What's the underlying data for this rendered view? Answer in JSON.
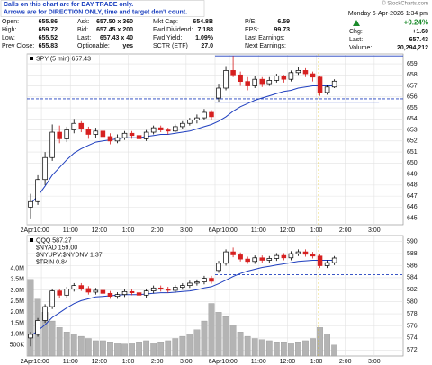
{
  "notice": [
    "Calls on this chart are for DAY TRADE only.",
    "Arrows are for DIRECTION ONLY, time and target don't count."
  ],
  "copyright": "© StockCharts.com",
  "quote": {
    "columns": [
      [
        [
          "Open:",
          "655.86"
        ],
        [
          "High:",
          "659.72"
        ],
        [
          "Low:",
          "655.52"
        ],
        [
          "Prev Close:",
          "655.83"
        ]
      ],
      [
        [
          "Ask:",
          "657.50 x 360"
        ],
        [
          "Bid:",
          "657.45 x 200"
        ],
        [
          "Last:",
          "657.43 x 40"
        ],
        [
          "Optionable:",
          "yes"
        ]
      ],
      [
        [
          "Mkt Cap:",
          "654.8B"
        ],
        [
          "Fwd Dividend:",
          "7.188"
        ],
        [
          "Fwd Yield:",
          "1.09%"
        ],
        [
          "SCTR (ETF)",
          "27.0"
        ]
      ],
      [
        [
          "P/E:",
          "6.59"
        ],
        [
          "EPS:",
          "99.73"
        ],
        [
          "Last Earnings:"
        ],
        [
          "Next Earnings:"
        ]
      ]
    ]
  },
  "summary": {
    "datetime": "Monday  6-Apr-2026  1:34 pm",
    "change_pct": "+0.24%",
    "rows": [
      [
        "Chg:",
        "+1.60"
      ],
      [
        "Last:",
        "657.43"
      ],
      [
        "Volume:",
        "20,294,212"
      ]
    ]
  },
  "chart_data": [
    {
      "type": "candlestick",
      "title": "SPY (5 min) 657.43",
      "x": [
        0,
        3,
        6,
        9,
        12,
        15,
        18,
        21,
        24,
        27,
        30,
        33,
        36,
        39,
        42,
        45,
        48,
        51,
        54,
        57,
        60,
        63,
        66,
        69,
        72,
        75,
        78,
        81,
        84,
        87,
        90,
        93,
        96,
        99,
        102,
        105,
        108,
        111,
        114,
        117,
        120,
        123,
        126
      ],
      "ohlc": [
        [
          646.0,
          647.2,
          644.9,
          646.5
        ],
        [
          646.5,
          648.9,
          646.2,
          648.5
        ],
        [
          648.5,
          651.0,
          648.0,
          650.5
        ],
        [
          650.5,
          653.5,
          650.2,
          652.8
        ],
        [
          652.8,
          653.4,
          651.8,
          652.2
        ],
        [
          652.2,
          653.3,
          651.9,
          653.0
        ],
        [
          653.0,
          654.0,
          652.7,
          653.6
        ],
        [
          653.6,
          653.8,
          652.8,
          653.1
        ],
        [
          653.1,
          653.3,
          652.2,
          652.6
        ],
        [
          652.6,
          653.2,
          652.3,
          652.9
        ],
        [
          652.9,
          653.1,
          652.0,
          652.4
        ],
        [
          652.4,
          652.7,
          651.7,
          652.0
        ],
        [
          652.0,
          652.6,
          651.8,
          652.3
        ],
        [
          652.3,
          652.9,
          652.1,
          652.7
        ],
        [
          652.7,
          652.9,
          652.2,
          652.5
        ],
        [
          652.5,
          652.7,
          651.9,
          652.2
        ],
        [
          652.2,
          653.0,
          652.0,
          652.8
        ],
        [
          652.8,
          653.4,
          652.6,
          653.2
        ],
        [
          653.2,
          653.4,
          652.8,
          653.0
        ],
        [
          653.0,
          653.2,
          652.6,
          652.9
        ],
        [
          652.9,
          653.5,
          652.8,
          653.3
        ],
        [
          653.3,
          653.8,
          653.1,
          653.6
        ],
        [
          653.6,
          654.1,
          653.4,
          653.9
        ],
        [
          653.9,
          654.4,
          653.6,
          654.1
        ],
        [
          654.1,
          654.9,
          653.9,
          654.6
        ],
        [
          654.6,
          654.8,
          653.9,
          654.2
        ],
        [
          655.9,
          657.2,
          655.5,
          656.8
        ],
        [
          656.8,
          658.8,
          656.6,
          658.4
        ],
        [
          658.4,
          659.72,
          657.8,
          658.0
        ],
        [
          658.0,
          658.3,
          657.0,
          657.4
        ],
        [
          657.4,
          657.8,
          656.6,
          657.0
        ],
        [
          657.0,
          657.9,
          656.8,
          657.6
        ],
        [
          657.6,
          657.8,
          656.9,
          657.2
        ],
        [
          657.2,
          657.8,
          657.0,
          657.5
        ],
        [
          657.5,
          658.1,
          657.3,
          657.9
        ],
        [
          657.9,
          658.0,
          657.3,
          657.6
        ],
        [
          657.6,
          658.4,
          657.4,
          658.2
        ],
        [
          658.2,
          658.7,
          658.0,
          658.4
        ],
        [
          658.4,
          658.6,
          657.8,
          658.1
        ],
        [
          658.1,
          658.3,
          657.4,
          657.8
        ],
        [
          657.8,
          657.9,
          656.1,
          656.4
        ],
        [
          656.4,
          657.1,
          656.2,
          656.9
        ],
        [
          656.9,
          657.6,
          656.8,
          657.43
        ]
      ],
      "ma": {
        "color": "#1f3fbf",
        "values": [
          646.3,
          647.0,
          647.9,
          648.9,
          649.6,
          650.3,
          650.9,
          651.3,
          651.6,
          651.9,
          652.0,
          652.1,
          652.2,
          652.3,
          652.3,
          652.3,
          652.4,
          652.5,
          652.6,
          652.6,
          652.7,
          652.8,
          652.9,
          653.1,
          653.3,
          653.5,
          653.8,
          654.2,
          654.7,
          655.1,
          655.4,
          655.7,
          655.9,
          656.1,
          656.3,
          656.5,
          656.6,
          656.8,
          656.9,
          657.0,
          657.0,
          657.0,
          657.0
        ]
      },
      "up_color": "#000000",
      "down_color": "#d62020",
      "xlim": [
        0,
        156
      ],
      "xticks": [
        {
          "value": 0,
          "label": "2Apr"
        },
        {
          "value": 6,
          "label": "10:00"
        },
        {
          "value": 18,
          "label": "11:00"
        },
        {
          "value": 30,
          "label": "12:00"
        },
        {
          "value": 42,
          "label": "1:00"
        },
        {
          "value": 54,
          "label": "2:00"
        },
        {
          "value": 66,
          "label": "3:00"
        },
        {
          "value": 78,
          "label": "6Apr"
        },
        {
          "value": 84,
          "label": "10:00"
        },
        {
          "value": 96,
          "label": "11:00"
        },
        {
          "value": 108,
          "label": "12:00"
        },
        {
          "value": 120,
          "label": "1:00"
        },
        {
          "value": 132,
          "label": "2:00"
        },
        {
          "value": 144,
          "label": "3:00"
        }
      ],
      "ylim": [
        644.4,
        659.9
      ],
      "yticks": [
        645,
        646,
        647,
        648,
        649,
        650,
        651,
        652,
        653,
        654,
        655,
        656,
        657,
        658,
        659
      ],
      "hlines": [
        {
          "value": 659.72,
          "from": 78,
          "to": 156,
          "dashed": false
        },
        {
          "value": 655.83,
          "from": 0,
          "to": 156,
          "dashed": true
        },
        {
          "value": 655.52,
          "from": 78,
          "to": 146,
          "dashed": false
        }
      ],
      "hline_color": "#1f3fbf",
      "marker_x": 121,
      "marker_color": "#e0c000",
      "grid": true
    },
    {
      "type": "candlestick",
      "title": "QQQ 587.27",
      "legend": [
        "$NYAD 159.00",
        "$NYUPV:$NYDNV 1.37",
        "$TRIN 0.84"
      ],
      "x": [
        0,
        3,
        6,
        9,
        12,
        15,
        18,
        21,
        24,
        27,
        30,
        33,
        36,
        39,
        42,
        45,
        48,
        51,
        54,
        57,
        60,
        63,
        66,
        69,
        72,
        75,
        78,
        81,
        84,
        87,
        90,
        93,
        96,
        99,
        102,
        105,
        108,
        111,
        114,
        117,
        120,
        123,
        126
      ],
      "ohlc": [
        [
          574.0,
          575.0,
          572.6,
          574.6
        ],
        [
          574.6,
          577.3,
          574.2,
          576.9
        ],
        [
          576.9,
          579.6,
          576.5,
          579.2
        ],
        [
          579.2,
          582.2,
          578.8,
          581.8
        ],
        [
          581.8,
          582.2,
          580.7,
          581.1
        ],
        [
          581.1,
          582.5,
          580.7,
          582.1
        ],
        [
          582.1,
          583.1,
          581.7,
          582.7
        ],
        [
          582.7,
          583.1,
          581.8,
          582.2
        ],
        [
          582.2,
          582.6,
          581.2,
          581.6
        ],
        [
          581.6,
          582.3,
          581.2,
          581.9
        ],
        [
          581.9,
          582.3,
          581.0,
          581.4
        ],
        [
          581.4,
          581.8,
          580.5,
          580.9
        ],
        [
          580.9,
          581.6,
          580.5,
          581.2
        ],
        [
          581.2,
          582.1,
          580.8,
          581.7
        ],
        [
          581.7,
          582.1,
          581.1,
          581.5
        ],
        [
          581.5,
          581.9,
          580.7,
          581.1
        ],
        [
          581.1,
          582.2,
          580.7,
          581.8
        ],
        [
          581.8,
          582.7,
          581.4,
          582.3
        ],
        [
          582.3,
          582.7,
          581.7,
          582.1
        ],
        [
          582.1,
          582.5,
          581.5,
          581.9
        ],
        [
          581.9,
          582.8,
          581.5,
          582.4
        ],
        [
          582.4,
          583.1,
          582.0,
          582.7
        ],
        [
          582.7,
          583.5,
          582.3,
          583.1
        ],
        [
          583.1,
          583.7,
          582.7,
          583.3
        ],
        [
          583.3,
          584.3,
          582.9,
          583.9
        ],
        [
          583.9,
          584.3,
          583.0,
          583.4
        ],
        [
          585.2,
          586.8,
          584.8,
          586.4
        ],
        [
          586.4,
          588.7,
          586.0,
          588.3
        ],
        [
          588.3,
          589.0,
          587.4,
          587.8
        ],
        [
          587.8,
          588.2,
          586.7,
          587.1
        ],
        [
          587.1,
          587.5,
          586.3,
          586.7
        ],
        [
          586.7,
          587.7,
          586.3,
          587.3
        ],
        [
          587.3,
          587.7,
          586.5,
          586.9
        ],
        [
          586.9,
          587.6,
          586.5,
          587.2
        ],
        [
          587.2,
          588.1,
          586.8,
          587.7
        ],
        [
          587.7,
          588.1,
          586.9,
          587.3
        ],
        [
          587.3,
          588.4,
          586.9,
          588.0
        ],
        [
          588.0,
          588.7,
          587.6,
          588.3
        ],
        [
          588.3,
          588.7,
          587.5,
          587.9
        ],
        [
          587.9,
          588.3,
          587.2,
          587.6
        ],
        [
          587.6,
          588.0,
          585.6,
          586.0
        ],
        [
          586.0,
          586.9,
          585.6,
          586.5
        ],
        [
          586.5,
          587.6,
          586.1,
          587.27
        ]
      ],
      "ma": {
        "color": "#1f3fbf",
        "values": [
          574.3,
          575.2,
          576.2,
          577.4,
          578.2,
          579.0,
          579.7,
          580.2,
          580.5,
          580.8,
          580.9,
          581.0,
          581.1,
          581.2,
          581.2,
          581.2,
          581.3,
          581.4,
          581.5,
          581.5,
          581.6,
          581.7,
          581.8,
          582.0,
          582.3,
          582.5,
          583.0,
          583.6,
          584.2,
          584.7,
          585.1,
          585.4,
          585.7,
          585.9,
          586.1,
          586.3,
          586.5,
          586.7,
          586.8,
          586.9,
          586.9,
          586.9,
          586.9
        ]
      },
      "volume": {
        "color": "#b4b4b4",
        "values": [
          3500000,
          2600000,
          2000000,
          1600000,
          1300000,
          1100000,
          1000000,
          900000,
          800000,
          700000,
          700000,
          650000,
          600000,
          550000,
          600000,
          650000,
          700000,
          600000,
          650000,
          700000,
          800000,
          900000,
          1000000,
          1200000,
          1600000,
          2400000,
          2000000,
          1800000,
          1400000,
          1100000,
          900000,
          800000,
          750000,
          700000,
          650000,
          650000,
          600000,
          650000,
          700000,
          800000,
          1300000,
          1000000,
          500000
        ],
        "ylim": [
          0,
          5500000
        ],
        "yticks": [
          {
            "value": 500000,
            "label": "500K"
          },
          {
            "value": 1000000,
            "label": "1.0M"
          },
          {
            "value": 1500000,
            "label": "1.5M"
          },
          {
            "value": 2000000,
            "label": "2.0M"
          },
          {
            "value": 2500000,
            "label": "2.5M"
          },
          {
            "value": 3000000,
            "label": "3.0M"
          },
          {
            "value": 3500000,
            "label": "3.5M"
          },
          {
            "value": 4000000,
            "label": "4.0M"
          }
        ]
      },
      "up_color": "#000000",
      "down_color": "#d62020",
      "xlim": [
        0,
        156
      ],
      "xticks": [
        {
          "value": 0,
          "label": "2Apr"
        },
        {
          "value": 6,
          "label": "10:00"
        },
        {
          "value": 18,
          "label": "11:00"
        },
        {
          "value": 30,
          "label": "12:00"
        },
        {
          "value": 42,
          "label": "1:00"
        },
        {
          "value": 54,
          "label": "2:00"
        },
        {
          "value": 66,
          "label": "3:00"
        },
        {
          "value": 78,
          "label": "6Apr"
        },
        {
          "value": 84,
          "label": "10:00"
        },
        {
          "value": 96,
          "label": "11:00"
        },
        {
          "value": 108,
          "label": "12:00"
        },
        {
          "value": 120,
          "label": "1:00"
        },
        {
          "value": 132,
          "label": "2:00"
        },
        {
          "value": 144,
          "label": "3:00"
        }
      ],
      "ylim": [
        571,
        591
      ],
      "yticks": [
        572,
        574,
        576,
        578,
        580,
        582,
        584,
        586,
        588,
        590
      ],
      "hlines": [
        {
          "value": 584.5,
          "from": 78,
          "to": 156,
          "dashed": true
        }
      ],
      "hline_color": "#1f3fbf",
      "marker_x": 121,
      "marker_color": "#e0c000",
      "grid": true
    }
  ]
}
